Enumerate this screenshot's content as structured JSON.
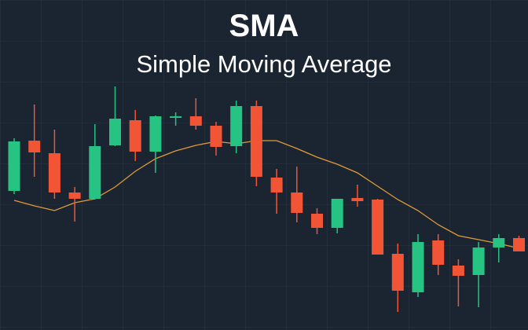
{
  "chart_data": {
    "type": "candlestick",
    "title": "SMA",
    "subtitle": "Simple Moving Average",
    "ylim": [
      0,
      420
    ],
    "open": [
      177,
      241,
      225,
      175,
      167,
      235,
      267,
      227,
      270,
      272,
      260,
      234,
      285,
      194,
      175,
      148,
      130,
      168,
      166,
      97,
      48,
      114,
      82,
      70,
      105,
      117
    ],
    "high": [
      244,
      287,
      255,
      182,
      262,
      310,
      280,
      273,
      277,
      295,
      265,
      292,
      292,
      205,
      208,
      155,
      167,
      185,
      167,
      110,
      122,
      122,
      90,
      112,
      122,
      120
    ],
    "low": [
      173,
      195,
      167,
      138,
      166,
      234,
      215,
      200,
      260,
      255,
      222,
      225,
      183,
      148,
      137,
      122,
      123,
      157,
      96,
      23,
      42,
      70,
      30,
      29,
      86,
      100
    ],
    "close": [
      240,
      226,
      175,
      167,
      234,
      269,
      227,
      272,
      272,
      260,
      233,
      285,
      195,
      175,
      149,
      130,
      167,
      164,
      96,
      50,
      112,
      83,
      69,
      105,
      117,
      100
    ],
    "up_color": "#27c383",
    "down_color": "#f25535",
    "sma": {
      "color": "#e09a36",
      "values": [
        165,
        158,
        152,
        162,
        167,
        182,
        202,
        218,
        228,
        235,
        240,
        237,
        241,
        241,
        231,
        220,
        211,
        200,
        183,
        166,
        152,
        134,
        120,
        115,
        110,
        104
      ]
    }
  }
}
